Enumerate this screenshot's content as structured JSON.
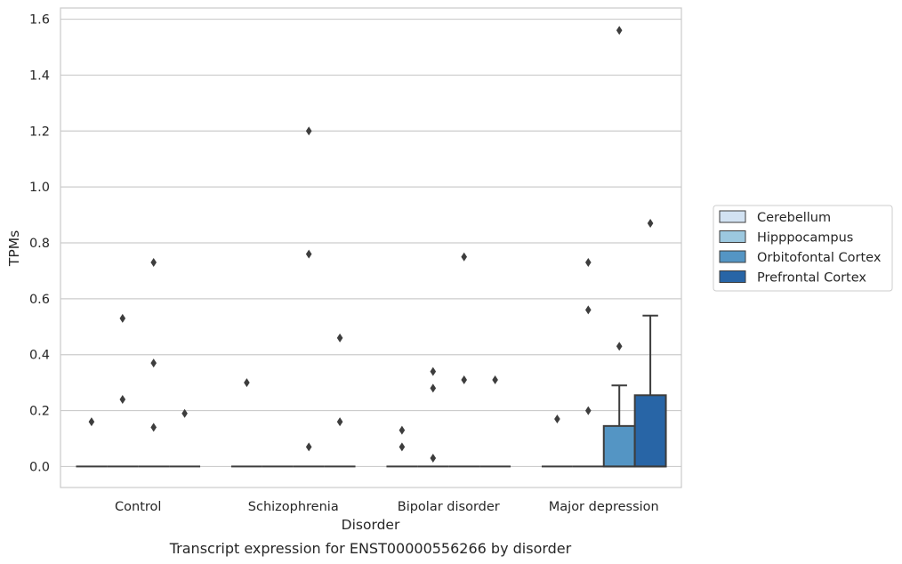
{
  "chart_data": {
    "type": "box",
    "caption": "Transcript expression for ENST00000556266 by disorder",
    "xlabel": "Disorder",
    "ylabel": "TPMs",
    "ylim": [
      -0.075,
      1.64
    ],
    "yticks": [
      0.0,
      0.2,
      0.4,
      0.6,
      0.8,
      1.0,
      1.2,
      1.4,
      1.6
    ],
    "ytick_labels": [
      "0.0",
      "0.2",
      "0.4",
      "0.6",
      "0.8",
      "1.0",
      "1.2",
      "1.4",
      "1.6"
    ],
    "grid": true,
    "legend_position": "right",
    "categories": [
      "Control",
      "Schizophrenia",
      "Bipolar disorder",
      "Major depression"
    ],
    "series": [
      {
        "name": "Cerebellum",
        "color": "#d2e2f2"
      },
      {
        "name": "Hipppocampus",
        "color": "#9cc8df"
      },
      {
        "name": "Orbitofontal Cortex",
        "color": "#5495c4"
      },
      {
        "name": "Prefrontal Cortex",
        "color": "#2865a6"
      }
    ],
    "boxes": [
      {
        "category": 0,
        "series": 0,
        "q1": 0,
        "median": 0,
        "q3": 0,
        "whisker_low": 0,
        "whisker_high": 0,
        "outliers": [
          0.16
        ]
      },
      {
        "category": 0,
        "series": 1,
        "q1": 0,
        "median": 0,
        "q3": 0,
        "whisker_low": 0,
        "whisker_high": 0,
        "outliers": [
          0.53,
          0.24
        ]
      },
      {
        "category": 0,
        "series": 2,
        "q1": 0,
        "median": 0,
        "q3": 0,
        "whisker_low": 0,
        "whisker_high": 0,
        "outliers": [
          0.73,
          0.37,
          0.14
        ]
      },
      {
        "category": 0,
        "series": 3,
        "q1": 0,
        "median": 0,
        "q3": 0,
        "whisker_low": 0,
        "whisker_high": 0,
        "outliers": [
          0.19
        ]
      },
      {
        "category": 1,
        "series": 0,
        "q1": 0,
        "median": 0,
        "q3": 0,
        "whisker_low": 0,
        "whisker_high": 0,
        "outliers": [
          0.3
        ]
      },
      {
        "category": 1,
        "series": 1,
        "q1": 0,
        "median": 0,
        "q3": 0,
        "whisker_low": 0,
        "whisker_high": 0,
        "outliers": []
      },
      {
        "category": 1,
        "series": 2,
        "q1": 0,
        "median": 0,
        "q3": 0,
        "whisker_low": 0,
        "whisker_high": 0,
        "outliers": [
          1.2,
          0.76,
          0.07
        ]
      },
      {
        "category": 1,
        "series": 3,
        "q1": 0,
        "median": 0,
        "q3": 0,
        "whisker_low": 0,
        "whisker_high": 0,
        "outliers": [
          0.46,
          0.16
        ]
      },
      {
        "category": 2,
        "series": 0,
        "q1": 0,
        "median": 0,
        "q3": 0,
        "whisker_low": 0,
        "whisker_high": 0,
        "outliers": [
          0.13,
          0.07
        ]
      },
      {
        "category": 2,
        "series": 1,
        "q1": 0,
        "median": 0,
        "q3": 0,
        "whisker_low": 0,
        "whisker_high": 0,
        "outliers": [
          0.34,
          0.28,
          0.03
        ]
      },
      {
        "category": 2,
        "series": 2,
        "q1": 0,
        "median": 0,
        "q3": 0,
        "whisker_low": 0,
        "whisker_high": 0,
        "outliers": [
          0.75,
          0.31
        ]
      },
      {
        "category": 2,
        "series": 3,
        "q1": 0,
        "median": 0,
        "q3": 0,
        "whisker_low": 0,
        "whisker_high": 0,
        "outliers": [
          0.31
        ]
      },
      {
        "category": 3,
        "series": 0,
        "q1": 0,
        "median": 0,
        "q3": 0,
        "whisker_low": 0,
        "whisker_high": 0,
        "outliers": [
          0.17
        ]
      },
      {
        "category": 3,
        "series": 1,
        "q1": 0,
        "median": 0,
        "q3": 0,
        "whisker_low": 0,
        "whisker_high": 0,
        "outliers": [
          0.73,
          0.56,
          0.2
        ]
      },
      {
        "category": 3,
        "series": 2,
        "q1": 0,
        "median": 0,
        "q3": 0.145,
        "whisker_low": 0,
        "whisker_high": 0.29,
        "outliers": [
          1.56,
          0.43
        ]
      },
      {
        "category": 3,
        "series": 3,
        "q1": 0,
        "median": 0,
        "q3": 0.255,
        "whisker_low": 0,
        "whisker_high": 0.54,
        "outliers": [
          0.87
        ]
      }
    ]
  }
}
